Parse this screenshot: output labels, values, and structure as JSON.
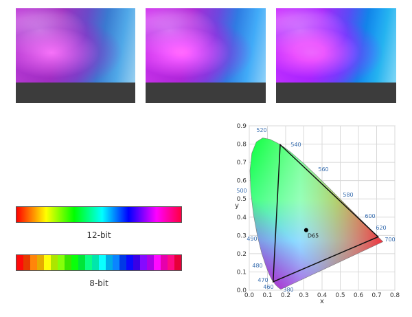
{
  "bars": [
    {
      "label": "12-bit"
    },
    {
      "label": "8-bit"
    }
  ],
  "chromaticity": {
    "xlabel": "x",
    "ylabel": "y",
    "xlim": [
      0,
      0.8
    ],
    "ylim": [
      0,
      0.9
    ],
    "xticks": [
      {
        "value": 0,
        "label": "0.0"
      },
      0.1,
      0.2,
      0.3,
      0.4,
      0.5,
      0.6,
      0.7,
      0.8
    ],
    "yticks": [
      {
        "value": 0,
        "label": "0.0"
      },
      0.1,
      0.2,
      0.3,
      0.4,
      0.5,
      0.6,
      0.7,
      0.8,
      0.9
    ],
    "grid": true,
    "wavelength_labels": [
      520,
      540,
      560,
      580,
      600,
      620,
      700,
      500,
      490,
      480,
      470,
      460,
      380
    ],
    "white_point": {
      "label": "D65",
      "x": 0.3127,
      "y": 0.329
    },
    "gamut": {
      "x": [
        0.708,
        0.17,
        0.131
      ],
      "y": [
        0.292,
        0.797,
        0.046
      ]
    }
  }
}
